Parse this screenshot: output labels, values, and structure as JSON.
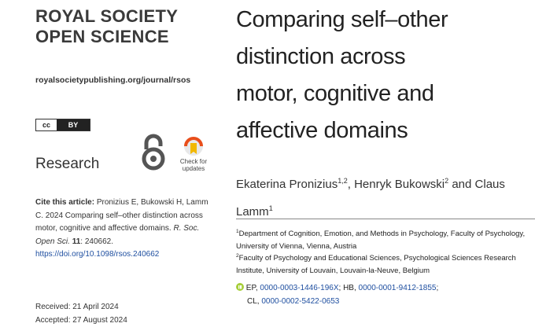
{
  "journal": {
    "name_line1": "ROYAL SOCIETY",
    "name_line2": "OPEN SCIENCE",
    "url": "royalsocietypublishing.org/journal/rsos"
  },
  "license": {
    "cc": "cc",
    "by": "BY"
  },
  "section": "Research",
  "check_updates": {
    "line1": "Check for",
    "line2": "updates"
  },
  "citation": {
    "label": "Cite this article:",
    "text": "Pronizius E, Bukowski H, Lamm C. 2024 Comparing self–other distinction across motor, cognitive and affective domains.",
    "journal": "R. Soc. Open Sci.",
    "volume": "11",
    "article": ": 240662.",
    "doi": "https://doi.org/10.1098/rsos.240662"
  },
  "dates": {
    "received": "Received: 21 April 2024",
    "accepted": "Accepted: 27 August 2024"
  },
  "article": {
    "title": "Comparing self–other distinction across motor, cognitive and affective domains",
    "authors": [
      {
        "name": "Ekaterina Pronizius",
        "affil": "1,2",
        "sep": ","
      },
      {
        "name": "Henryk Bukowski",
        "affil": "2",
        "sep": "and"
      },
      {
        "name": "Claus Lamm",
        "affil": "1"
      }
    ],
    "affiliations": [
      {
        "number": "1",
        "text": "Department of Cognition, Emotion, and Methods in Psychology, Faculty of Psychology, University of Vienna, Vienna, Austria"
      },
      {
        "number": "2",
        "text": "Faculty of Psychology and Educational Sciences, Psychological Sciences Research Institute, University of Louvain, Louvain-la-Neuve, Belgium"
      }
    ],
    "orcids": [
      {
        "prefix": "EP,",
        "id": "0000-0003-1446-196X",
        "suffix": ";"
      },
      {
        "prefix": "HB,",
        "id": "0000-0001-9412-1855",
        "suffix": ";"
      },
      {
        "prefix": "CL,",
        "id": "0000-0002-5422-0653"
      }
    ]
  }
}
